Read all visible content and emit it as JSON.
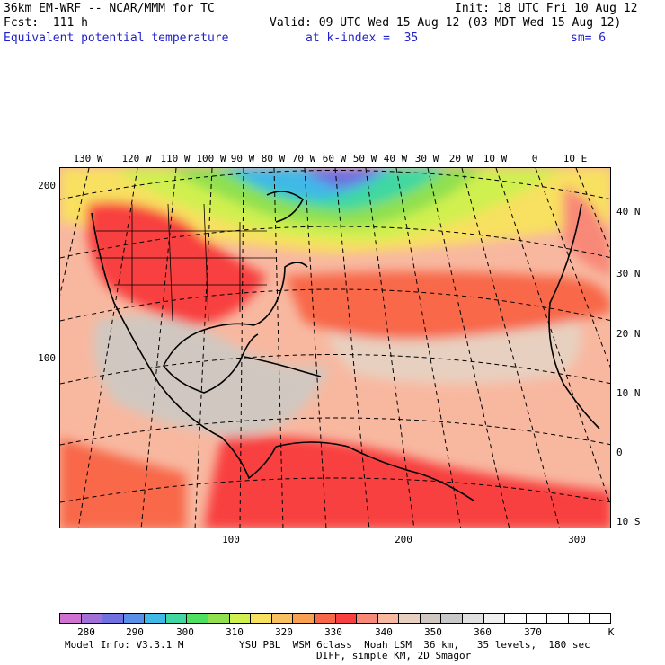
{
  "header": {
    "model_title": "36km EM-WRF -- NCAR/MMM for TC",
    "init": "Init: 18 UTC Fri 10 Aug 12",
    "fcst": "Fcst:  111 h",
    "valid": "Valid: 09 UTC Wed 15 Aug 12 (03 MDT Wed 15 Aug 12)",
    "field": "Equivalent potential temperature",
    "level": "at k-index =  35",
    "smooth": "sm= 6"
  },
  "axes": {
    "top_lon": [
      "130 W",
      "120 W",
      "110 W",
      "100 W",
      "90 W",
      "80 W",
      "70 W",
      "60 W",
      "50 W",
      "40 W",
      "30 W",
      "20 W",
      "10 W",
      "0",
      "10 E"
    ],
    "right_lat": [
      "40 N",
      "30 N",
      "20 N",
      "10 N",
      "0",
      "10 S"
    ],
    "left_grid": [
      "200",
      "100"
    ],
    "bottom_grid": [
      "100",
      "200",
      "300"
    ]
  },
  "colorbar": {
    "colors": [
      "#d070d0",
      "#a070d8",
      "#7070e0",
      "#5890e8",
      "#40b8e8",
      "#40d8a0",
      "#50e060",
      "#90e050",
      "#d0f050",
      "#f8e060",
      "#f8c060",
      "#f8a050",
      "#f86848",
      "#f84040",
      "#f88878",
      "#f8b8a0",
      "#e8d0c0",
      "#d0c8c0",
      "#c8c8c8",
      "#e0e0e0",
      "#f0f0f0",
      "#ffffff",
      "#ffffff",
      "#ffffff",
      "#ffffff",
      "#ffffff"
    ],
    "labels": [
      "280",
      "290",
      "300",
      "310",
      "320",
      "330",
      "340",
      "350",
      "360",
      "370",
      "K"
    ]
  },
  "footer": {
    "line1_left": "Model Info: V3.3.1 M",
    "line1_right": "YSU PBL  WSM 6class  Noah LSM  36 km,   35 levels,  180 sec",
    "line2": "DIFF, simple KM, 2D Smagor"
  }
}
